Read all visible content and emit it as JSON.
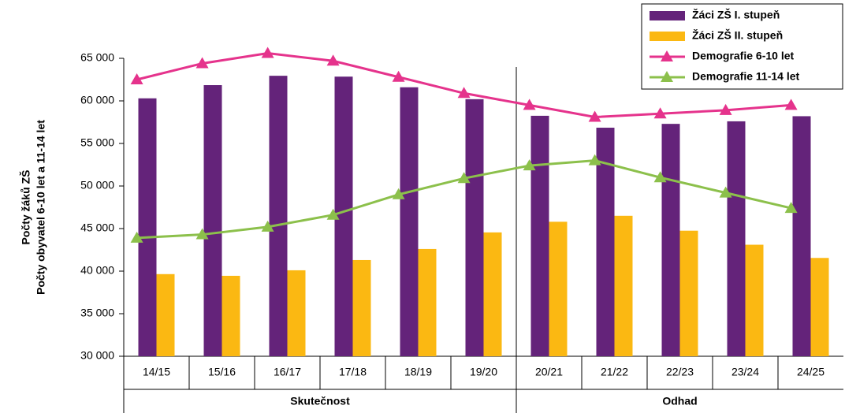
{
  "chart_data": {
    "type": "bar",
    "y_label_lines": [
      "Počty žáků ZŠ",
      "Počty obyvatel 6-10 let a 11-14 let"
    ],
    "groups": [
      {
        "label": "Skutečnost",
        "categories": [
          "14/15",
          "15/16",
          "16/17",
          "17/18",
          "18/19",
          "19/20"
        ]
      },
      {
        "label": "Odhad",
        "categories": [
          "20/21",
          "21/22",
          "22/23",
          "23/24",
          "24/25"
        ]
      }
    ],
    "series": [
      {
        "name": "Žáci ZŠ I. stupeň",
        "type": "bar",
        "color": "#64237a",
        "values": [
          60300,
          61850,
          62950,
          62850,
          61600,
          60200,
          58250,
          56850,
          57300,
          57600,
          58200
        ]
      },
      {
        "name": "Žáci ZŠ II. stupeň",
        "type": "bar",
        "color": "#fbb812",
        "values": [
          39650,
          39450,
          40100,
          41300,
          42600,
          44550,
          45800,
          46500,
          44750,
          43100,
          41550
        ]
      },
      {
        "name": "Demografie 6-10 let",
        "type": "line",
        "color": "#e5338c",
        "values": [
          62500,
          64400,
          65600,
          64700,
          62800,
          60900,
          59500,
          58100,
          58500,
          58900,
          59500
        ]
      },
      {
        "name": "Demografie 11-14 let",
        "type": "line",
        "color": "#8cc04b",
        "values": [
          43900,
          44300,
          45200,
          46600,
          49000,
          50900,
          52400,
          53000,
          51000,
          49200,
          47400
        ]
      }
    ],
    "ylim": [
      30000,
      65000
    ],
    "yticks": [
      {
        "value": 30000,
        "label": "30 000"
      },
      {
        "value": 35000,
        "label": "35 000"
      },
      {
        "value": 40000,
        "label": "40 000"
      },
      {
        "value": 45000,
        "label": "45 000"
      },
      {
        "value": 50000,
        "label": "50 000"
      },
      {
        "value": 55000,
        "label": "55 000"
      },
      {
        "value": 60000,
        "label": "60 000"
      },
      {
        "value": 65000,
        "label": "65 000"
      }
    ],
    "grid": false,
    "legend": "top-right"
  }
}
